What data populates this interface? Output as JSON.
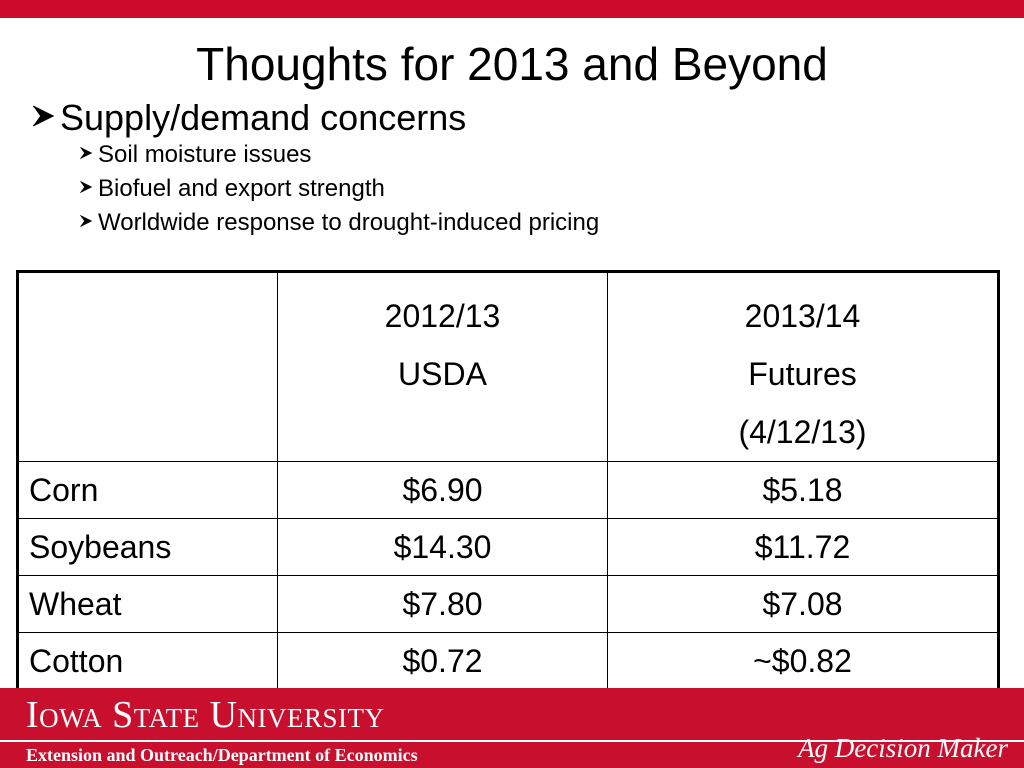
{
  "slide": {
    "title": "Thoughts for 2013 and Beyond",
    "bullet_main": "Supply/demand concerns",
    "sub_bullets": [
      "Soil moisture issues",
      "Biofuel and export strength",
      "Worldwide response to drought-induced pricing"
    ]
  },
  "table": {
    "header": {
      "col1": [
        "2012/13",
        "USDA"
      ],
      "col2": [
        "2013/14",
        "Futures",
        "(4/12/13)"
      ]
    },
    "rows": [
      {
        "crop": "Corn",
        "usda_2012_13": "$6.90",
        "futures_2013_14": "$5.18"
      },
      {
        "crop": "Soybeans",
        "usda_2012_13": "$14.30",
        "futures_2013_14": "$11.72"
      },
      {
        "crop": "Wheat",
        "usda_2012_13": "$7.80",
        "futures_2013_14": "$7.08"
      },
      {
        "crop": "Cotton",
        "usda_2012_13": "$0.72",
        "futures_2013_14": "~$0.82"
      }
    ]
  },
  "footer": {
    "university": "Iowa State University",
    "department": "Extension and Outreach/Department of Economics",
    "brand": "Ag Decision Maker"
  },
  "colors": {
    "accent_red": "#c8102e",
    "text": "#000000",
    "background": "#ffffff"
  },
  "icons": {
    "bullet": "arrowhead-bullet-icon"
  }
}
